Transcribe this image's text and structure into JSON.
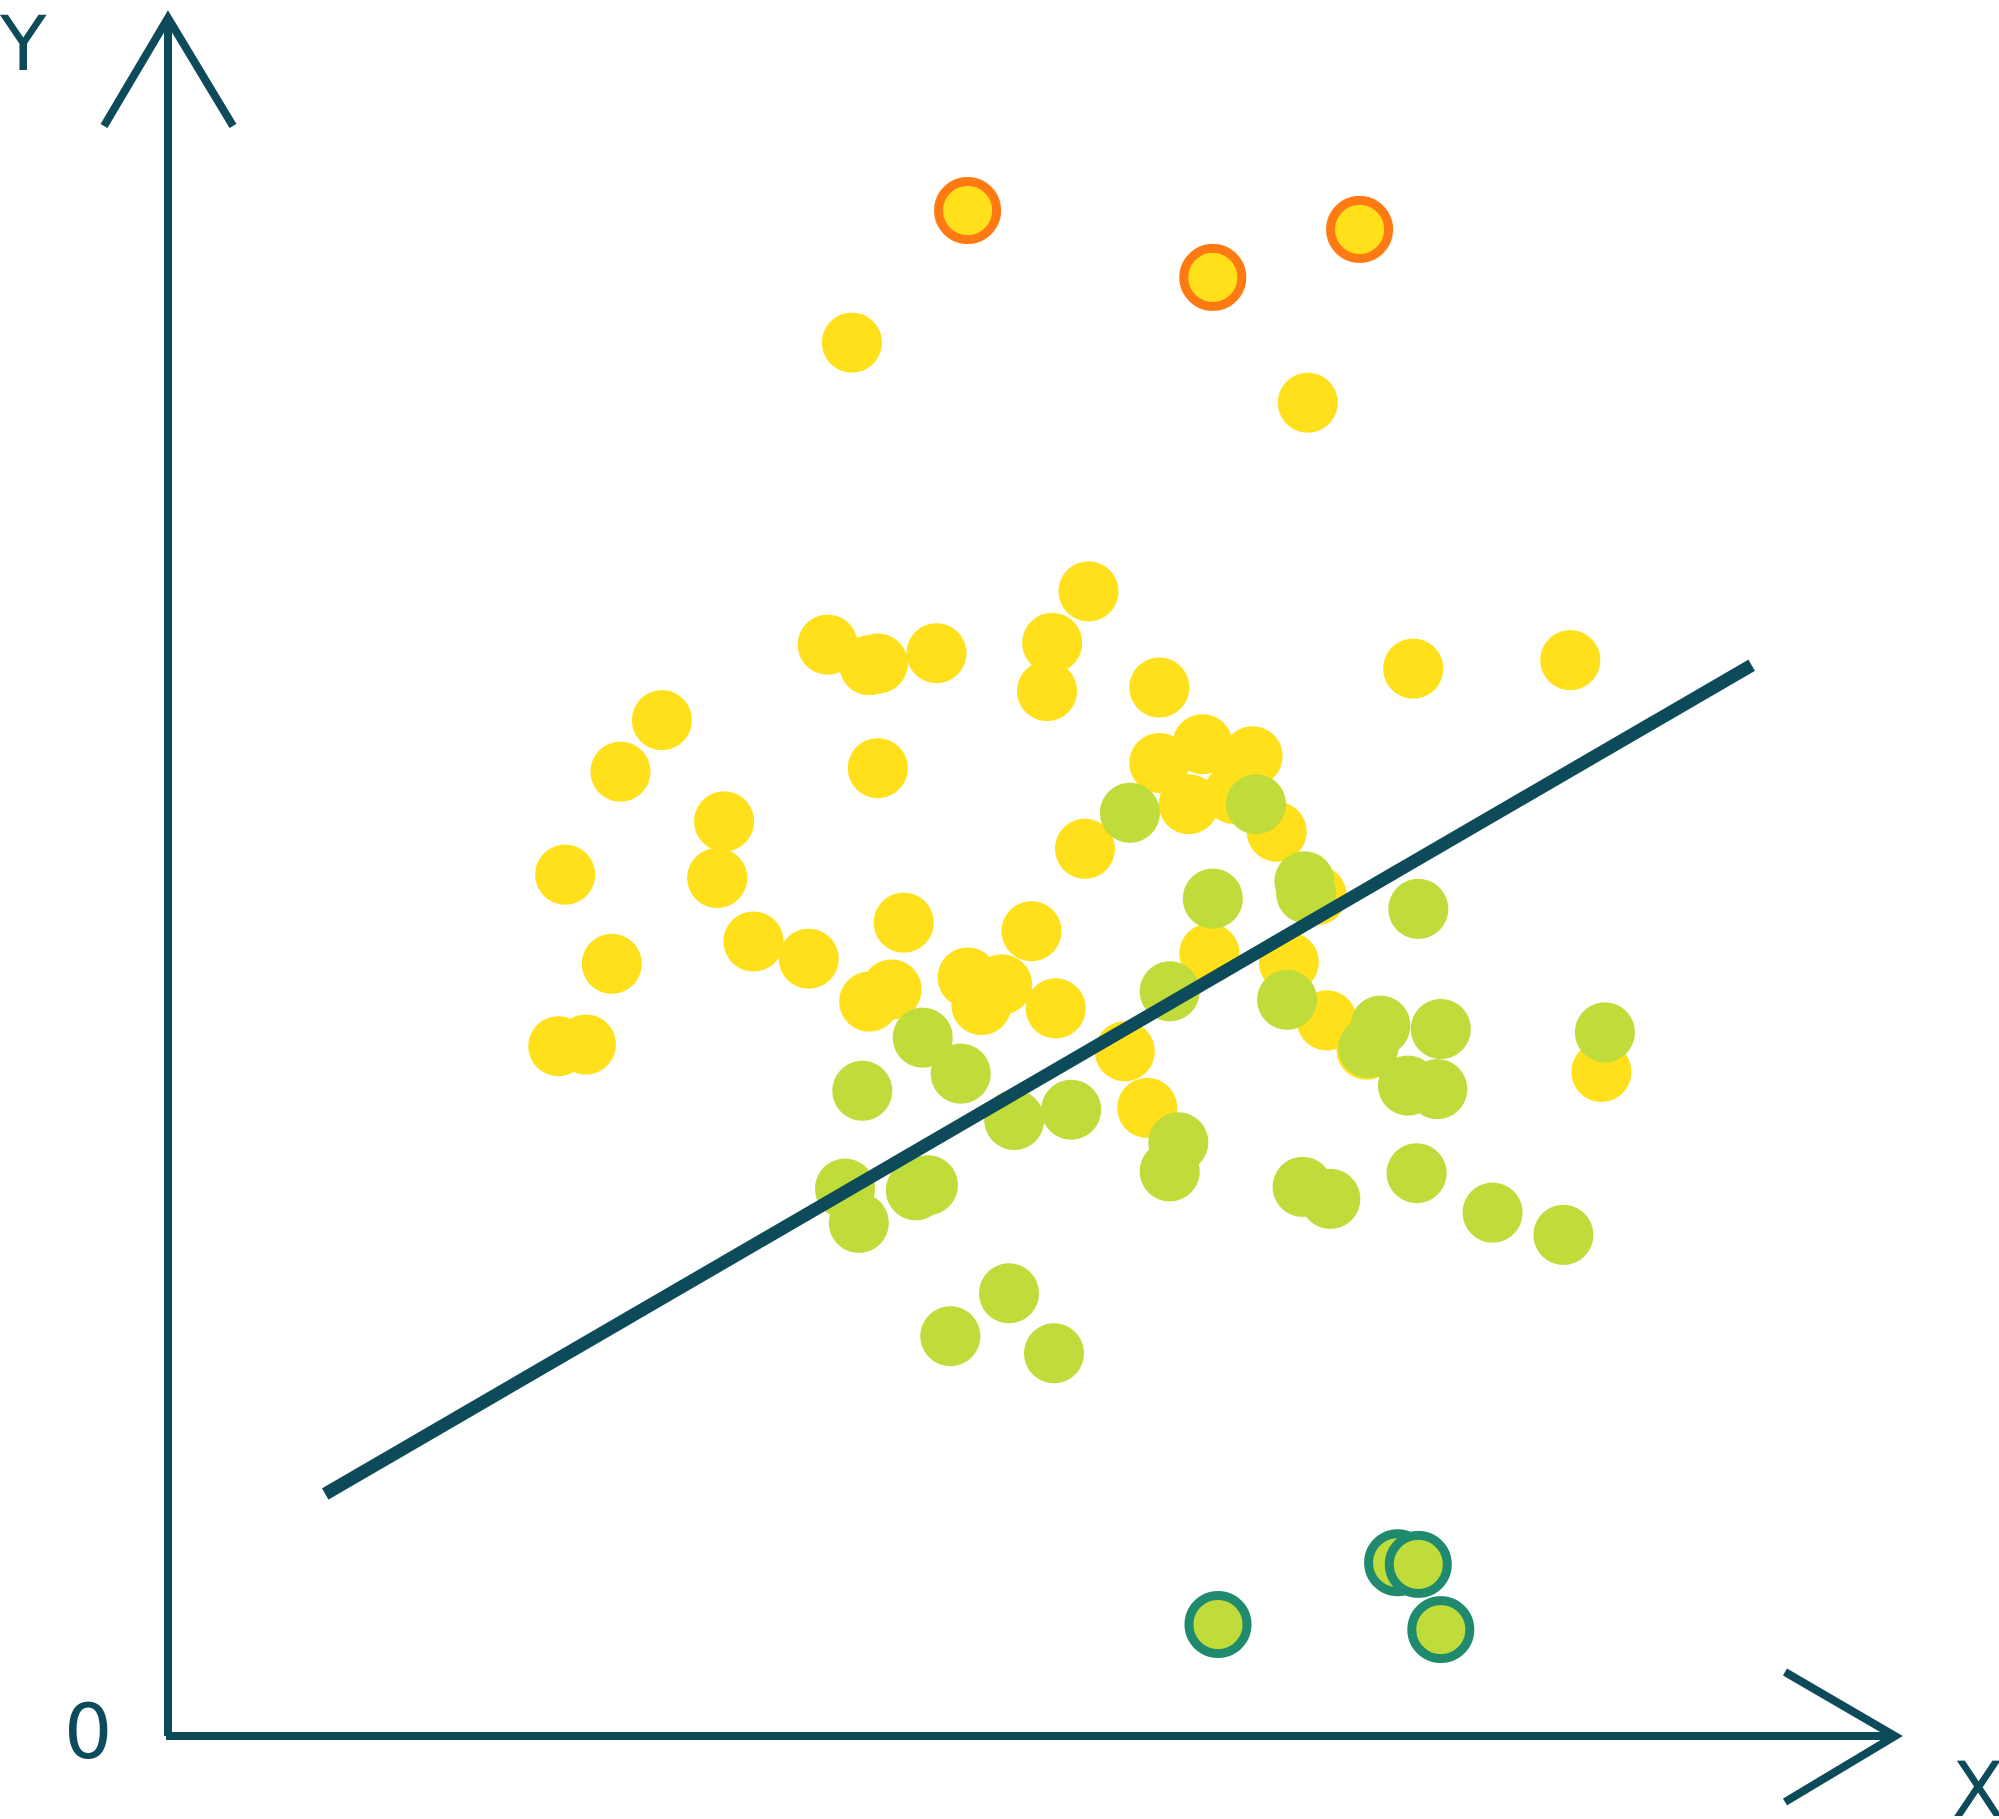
{
  "chart_data": {
    "type": "scatter",
    "title": "",
    "xlabel": "X",
    "ylabel": "Y",
    "origin_label": "0",
    "xlim": [
      0,
      1000
    ],
    "ylim": [
      0,
      1000
    ],
    "grid": false,
    "colors": {
      "axis": "#0d4a5a",
      "yellow_point": "#ffe01a",
      "green_point": "#bfdc3a",
      "yellow_outlier_ring": "#ff7a12",
      "green_outlier_ring": "#208a6e",
      "regression_line": "#0d4a5a"
    },
    "series": [
      {
        "kind": "yellow",
        "points": [
          [
            396,
            812
          ],
          [
            660,
            777
          ],
          [
            262,
            562
          ],
          [
            286,
            592
          ],
          [
            322,
            533
          ],
          [
            230,
            502
          ],
          [
            257,
            450
          ],
          [
            226,
            402
          ],
          [
            318,
            500
          ],
          [
            339,
            463
          ],
          [
            382,
            636
          ],
          [
            411,
            564
          ],
          [
            426,
            474
          ],
          [
            411,
            625
          ],
          [
            445,
            631
          ],
          [
            512,
            637
          ],
          [
            533,
            667
          ],
          [
            574,
            611
          ],
          [
            574,
            567
          ],
          [
            509,
            609
          ],
          [
            531,
            517
          ],
          [
            599,
            578
          ],
          [
            628,
            571
          ],
          [
            591,
            543
          ],
          [
            617,
            549
          ],
          [
            721,
            622
          ],
          [
            500,
            469
          ],
          [
            471,
            426
          ],
          [
            514,
            424
          ],
          [
            554,
            399
          ],
          [
            603,
            456
          ],
          [
            642,
            527
          ],
          [
            665,
            490
          ],
          [
            649,
            451
          ],
          [
            406,
            428
          ],
          [
            419,
            435
          ],
          [
            463,
            442
          ],
          [
            483,
            438
          ],
          [
            242,
            403
          ],
          [
            371,
            453
          ],
          [
            567,
            366
          ],
          [
            671,
            417
          ],
          [
            694,
            400
          ],
          [
            812,
            627
          ],
          [
            830,
            387
          ],
          [
            406,
            624
          ]
        ]
      },
      {
        "kind": "green",
        "points": [
          [
            557,
            538
          ],
          [
            630,
            543
          ],
          [
            580,
            434
          ],
          [
            648,
            429
          ],
          [
            702,
            414
          ],
          [
            737,
            412
          ],
          [
            718,
            379
          ],
          [
            523,
            365
          ],
          [
            580,
            329
          ],
          [
            657,
            320
          ],
          [
            490,
            359
          ],
          [
            402,
            376
          ],
          [
            437,
            407
          ],
          [
            459,
            386
          ],
          [
            392,
            319
          ],
          [
            400,
            299
          ],
          [
            440,
            321
          ],
          [
            433,
            318
          ],
          [
            487,
            258
          ],
          [
            453,
            233
          ],
          [
            513,
            223
          ],
          [
            585,
            346
          ],
          [
            735,
            377
          ],
          [
            767,
            305
          ],
          [
            808,
            292
          ],
          [
            723,
            328
          ],
          [
            673,
            313
          ],
          [
            832,
            410
          ],
          [
            695,
            401
          ],
          [
            605,
            488
          ],
          [
            659,
            491
          ],
          [
            658,
            498
          ],
          [
            724,
            482
          ]
        ]
      },
      {
        "kind": "yellow-outlier",
        "points": [
          [
            463,
            889
          ],
          [
            690,
            878
          ],
          [
            605,
            850
          ]
        ]
      },
      {
        "kind": "green-outlier",
        "points": [
          [
            712,
            101
          ],
          [
            608,
            65
          ],
          [
            737,
            62
          ],
          [
            724,
            100
          ]
        ]
      }
    ],
    "trend_line": {
      "x": [
        91,
        917
      ],
      "y": [
        141,
        624
      ]
    }
  }
}
